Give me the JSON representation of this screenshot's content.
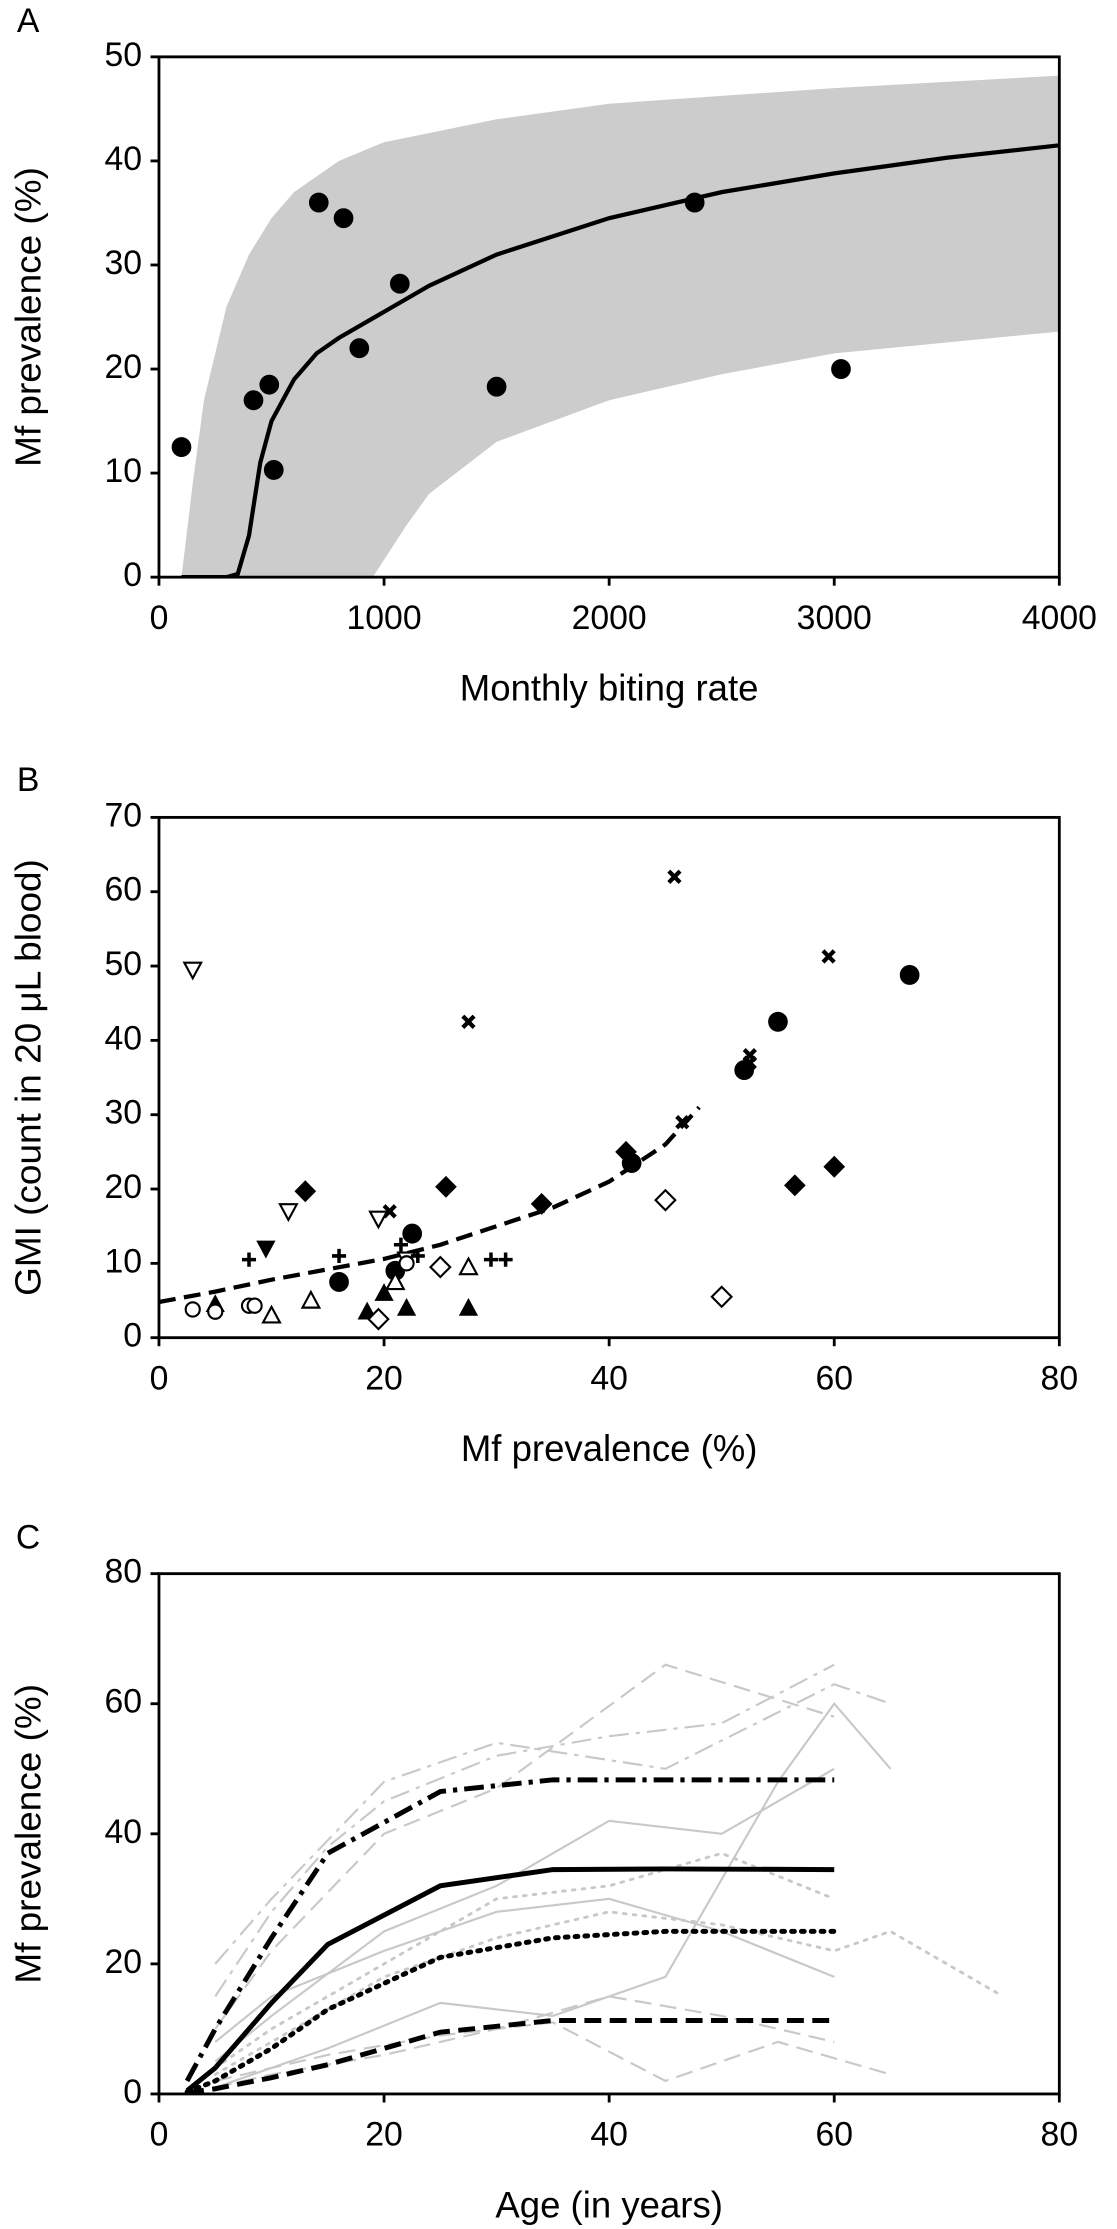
{
  "chart_data": [
    {
      "type": "scatter",
      "label": "A",
      "xlabel": "Monthly biting rate",
      "ylabel": "Mf prevalence (%)",
      "xlim": [
        0,
        4000
      ],
      "xticks": [
        0,
        1000,
        2000,
        3000,
        4000
      ],
      "ylim": [
        0,
        50
      ],
      "yticks": [
        0,
        10,
        20,
        30,
        40,
        50
      ],
      "band": {
        "color": "#cccccc",
        "upper": {
          "x": [
            100,
            150,
            200,
            300,
            400,
            500,
            600,
            800,
            1000,
            1500,
            2000,
            3000,
            4000
          ],
          "values": [
            0,
            9,
            17,
            26,
            31,
            34.5,
            37,
            40,
            41.8,
            44,
            45.5,
            47,
            48.2
          ]
        },
        "lower": {
          "x": [
            950,
            1100,
            1200,
            1500,
            2000,
            2500,
            3000,
            4000
          ],
          "values": [
            0,
            5,
            8,
            13,
            17,
            19.5,
            21.5,
            23.6
          ]
        }
      },
      "fit": {
        "color": "#000000",
        "x": [
          100,
          200,
          300,
          350,
          400,
          450,
          500,
          600,
          700,
          800,
          1000,
          1200,
          1500,
          2000,
          2500,
          3000,
          3500,
          4000
        ],
        "values": [
          0,
          0,
          0,
          0.3,
          4,
          11,
          15,
          19,
          21.5,
          23,
          25.5,
          28,
          31,
          34.5,
          37,
          38.8,
          40.3,
          41.5
        ]
      },
      "series": [
        {
          "marker": "circle-filled",
          "color": "#000000",
          "x": [
            100,
            420,
            490,
            510,
            710,
            820,
            890,
            1070,
            1500,
            2380,
            3030
          ],
          "values": [
            12.5,
            17,
            18.5,
            10.3,
            36,
            34.5,
            22,
            28.2,
            18.3,
            36,
            20
          ]
        }
      ]
    },
    {
      "type": "scatter",
      "label": "B",
      "xlabel": "Mf prevalence (%)",
      "ylabel": "GMI (count in 20 μL blood)",
      "xlim": [
        0,
        80
      ],
      "xticks": [
        0,
        20,
        40,
        60,
        80
      ],
      "ylim": [
        0,
        70
      ],
      "yticks": [
        0,
        10,
        20,
        30,
        40,
        50,
        60,
        70
      ],
      "fit": {
        "color": "#000000",
        "dash": "dash",
        "x": [
          0,
          5,
          10,
          15,
          20,
          25,
          30,
          35,
          40,
          45,
          48
        ],
        "values": [
          4.8,
          6.2,
          7.8,
          9.2,
          10.6,
          12.5,
          15,
          17.5,
          21,
          26,
          31
        ]
      },
      "series": [
        {
          "marker": "circle-filled",
          "color": "#000000",
          "x": [
            16,
            21,
            22.5,
            42,
            52,
            55,
            66.7
          ],
          "values": [
            7.5,
            9,
            14,
            23.5,
            36,
            42.5,
            48.8
          ]
        },
        {
          "marker": "cross",
          "color": "#000000",
          "x": [
            20.5,
            27.5,
            45.8,
            46.5,
            52.5,
            52.5,
            59.5
          ],
          "values": [
            17,
            42.5,
            62,
            29,
            38,
            37,
            51.3
          ]
        },
        {
          "marker": "diamond-filled",
          "color": "#000000",
          "x": [
            13,
            25.5,
            34,
            41.5,
            56.5,
            60
          ],
          "values": [
            19.7,
            20.3,
            18,
            25,
            20.5,
            23
          ]
        },
        {
          "marker": "triangle-up-filled",
          "color": "#000000",
          "x": [
            5,
            18.5,
            20,
            22,
            27.5
          ],
          "values": [
            4.5,
            3.5,
            6,
            4,
            4
          ]
        },
        {
          "marker": "triangle-down-open",
          "color": "#000000",
          "x": [
            3,
            11.5,
            19.5,
            22
          ],
          "values": [
            49.5,
            17,
            16,
            10.5
          ]
        },
        {
          "marker": "triangle-down-filled",
          "color": "#000000",
          "x": [
            9.5
          ],
          "values": [
            12
          ]
        },
        {
          "marker": "plus",
          "color": "#000000",
          "x": [
            8,
            16,
            21.5,
            23,
            29.5,
            30.8
          ],
          "values": [
            10.5,
            11,
            12.5,
            11,
            10.5,
            10.5
          ]
        },
        {
          "marker": "diamond-open",
          "color": "#000000",
          "x": [
            19.5,
            25,
            45,
            50
          ],
          "values": [
            2.5,
            9.5,
            18.5,
            5.5
          ]
        },
        {
          "marker": "triangle-up-open",
          "color": "#000000",
          "x": [
            10,
            13.5,
            21,
            27.5
          ],
          "values": [
            3,
            5,
            7.5,
            9.5
          ]
        },
        {
          "marker": "circle-open",
          "color": "#000000",
          "x": [
            3,
            5,
            8,
            8.5,
            22
          ],
          "values": [
            3.8,
            3.5,
            4.3,
            4.3,
            10
          ]
        }
      ]
    },
    {
      "type": "line",
      "label": "C",
      "xlabel": "Age (in years)",
      "ylabel": "Mf prevalence (%)",
      "xlim": [
        0,
        80
      ],
      "xticks": [
        0,
        20,
        40,
        60,
        80
      ],
      "ylim": [
        0,
        80
      ],
      "yticks": [
        0,
        20,
        40,
        60,
        80
      ],
      "series": [
        {
          "color": "#c8c8c8",
          "dash": "dashdot",
          "width": 1.5,
          "x": [
            5,
            10,
            15,
            20,
            30,
            40,
            50,
            60
          ],
          "values": [
            15,
            28,
            38,
            45,
            52,
            55,
            57,
            66
          ]
        },
        {
          "color": "#c8c8c8",
          "dash": "dash",
          "width": 1.5,
          "x": [
            5,
            10,
            20,
            30,
            45,
            60
          ],
          "values": [
            10,
            22,
            40,
            47,
            66,
            58
          ]
        },
        {
          "color": "#c8c8c8",
          "dash": "solid",
          "width": 1.5,
          "x": [
            5,
            10,
            20,
            30,
            40,
            50,
            60
          ],
          "values": [
            5,
            12,
            25,
            32,
            42,
            40,
            50
          ]
        },
        {
          "color": "#c8c8c8",
          "dash": "dot",
          "width": 2,
          "x": [
            5,
            10,
            20,
            30,
            40,
            50,
            60,
            65,
            75
          ],
          "values": [
            3,
            8,
            18,
            24,
            28,
            26,
            22,
            25,
            15
          ]
        },
        {
          "color": "#c8c8c8",
          "dash": "dash",
          "width": 1.5,
          "x": [
            5,
            15,
            25,
            35,
            45,
            55,
            65
          ],
          "values": [
            2,
            6,
            9,
            11,
            2,
            8,
            3
          ]
        },
        {
          "color": "#c8c8c8",
          "dash": "solid",
          "width": 1.5,
          "x": [
            5,
            10,
            20,
            30,
            40,
            50,
            60
          ],
          "values": [
            8,
            15,
            22,
            28,
            30,
            25,
            18
          ]
        },
        {
          "color": "#c8c8c8",
          "dash": "dashdot",
          "width": 1.5,
          "x": [
            5,
            10,
            20,
            30,
            45,
            60,
            65
          ],
          "values": [
            20,
            30,
            48,
            54,
            50,
            63,
            60
          ]
        },
        {
          "color": "#c8c8c8",
          "dash": "dot",
          "width": 2,
          "x": [
            5,
            10,
            20,
            30,
            40,
            50,
            60
          ],
          "values": [
            4,
            10,
            20,
            30,
            32,
            37,
            30
          ]
        },
        {
          "color": "#c8c8c8",
          "dash": "solid",
          "width": 1.5,
          "x": [
            5,
            15,
            25,
            35,
            45,
            55,
            60,
            65
          ],
          "values": [
            1,
            7,
            14,
            12,
            18,
            48,
            60,
            50
          ]
        },
        {
          "color": "#c8c8c8",
          "dash": "dash",
          "width": 1.5,
          "x": [
            5,
            10,
            20,
            30,
            40,
            50,
            60
          ],
          "values": [
            1,
            3,
            6,
            10,
            15,
            12,
            8
          ]
        },
        {
          "color": "#000000",
          "dash": "dashdot",
          "width": 3.5,
          "x": [
            2.5,
            5,
            10,
            15,
            25,
            35,
            45,
            60
          ],
          "values": [
            2,
            10,
            24,
            37,
            46.5,
            48.3,
            48.3,
            48.3
          ]
        },
        {
          "color": "#000000",
          "dash": "solid",
          "width": 3.5,
          "x": [
            2.5,
            5,
            10,
            15,
            25,
            35,
            45,
            60
          ],
          "values": [
            0.5,
            4,
            14,
            23,
            32,
            34.5,
            34.6,
            34.5
          ]
        },
        {
          "color": "#000000",
          "dash": "dot",
          "width": 3.5,
          "x": [
            2.5,
            5,
            10,
            15,
            25,
            35,
            45,
            60
          ],
          "values": [
            0.3,
            2,
            7,
            13,
            21,
            24,
            25,
            25
          ]
        },
        {
          "color": "#000000",
          "dash": "dash",
          "width": 3.5,
          "x": [
            2.5,
            5,
            10,
            15,
            25,
            35,
            45,
            60
          ],
          "values": [
            0.2,
            0.8,
            2.5,
            4.5,
            9.5,
            11.3,
            11.3,
            11.3
          ]
        }
      ]
    }
  ]
}
